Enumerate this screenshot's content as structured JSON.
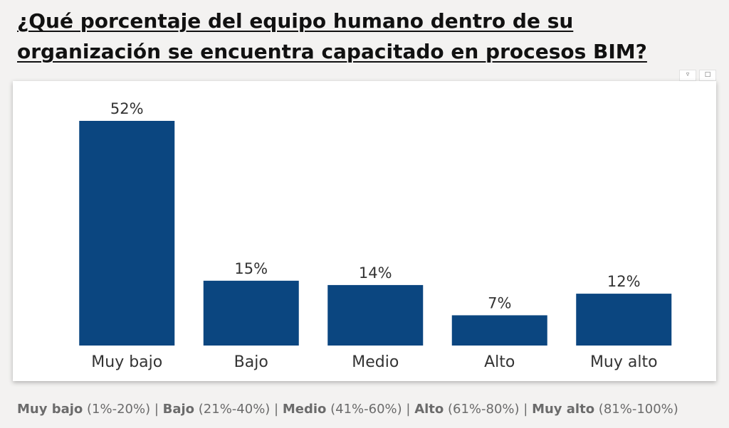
{
  "title": "¿Qué porcentaje del equipo humano dentro de su organización se encuentra capacitado en procesos BIM?",
  "header_icons": [
    "filter-icon",
    "focus-mode-icon"
  ],
  "colors": {
    "bar": "#0b4680",
    "label": "#333333"
  },
  "chart_data": {
    "type": "bar",
    "title": "",
    "xlabel": "",
    "ylabel": "",
    "categories": [
      "Muy bajo",
      "Bajo",
      "Medio",
      "Alto",
      "Muy alto"
    ],
    "values": [
      52,
      15,
      14,
      7,
      12
    ],
    "value_labels": [
      "52%",
      "15%",
      "14%",
      "7%",
      "12%"
    ],
    "ylim": [
      0,
      52
    ],
    "grid": false
  },
  "legend_note": [
    {
      "name": "Muy bajo",
      "range": "(1%-20%)"
    },
    {
      "name": "Bajo",
      "range": "(21%-40%)"
    },
    {
      "name": "Medio",
      "range": "(41%-60%)"
    },
    {
      "name": "Alto",
      "range": "(61%-80%)"
    },
    {
      "name": "Muy alto",
      "range": "(81%-100%)"
    }
  ],
  "legend_separator": " | "
}
